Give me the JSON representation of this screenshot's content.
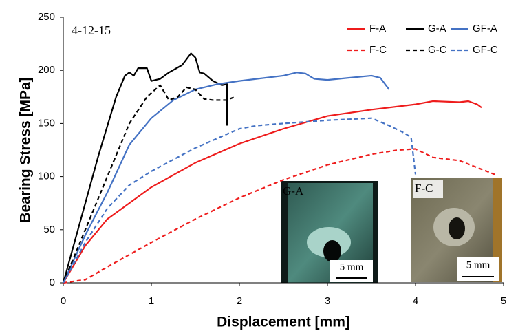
{
  "chart_data": {
    "type": "line",
    "annotation": "4-12-15",
    "xlabel": "Displacement [mm]",
    "ylabel": "Bearing Stress [MPa]",
    "xlim": [
      0,
      5
    ],
    "xticks": [
      0,
      1,
      2,
      3,
      4,
      5
    ],
    "ylim": [
      0,
      250
    ],
    "yticks": [
      0,
      50,
      100,
      150,
      200,
      250
    ],
    "insets": [
      {
        "label": "G-A",
        "scale": "5 mm"
      },
      {
        "label": "F-C",
        "scale": "5 mm"
      }
    ],
    "series": [
      {
        "name": "F-A",
        "color": "#ee1c1c",
        "dashed": false,
        "x": [
          0,
          0.25,
          0.5,
          1,
          1.5,
          2,
          2.5,
          3,
          3.5,
          4,
          4.2,
          4.5,
          4.6,
          4.7,
          4.75
        ],
        "values": [
          0,
          35,
          60,
          90,
          113,
          131,
          145,
          157,
          163,
          168,
          171,
          170,
          171,
          168,
          165
        ]
      },
      {
        "name": "G-A",
        "color": "#000000",
        "dashed": false,
        "x": [
          0,
          0.2,
          0.4,
          0.6,
          0.7,
          0.75,
          0.8,
          0.85,
          0.95,
          1.0,
          1.1,
          1.2,
          1.35,
          1.45,
          1.5,
          1.55,
          1.6,
          1.7,
          1.8,
          1.86,
          1.86
        ],
        "values": [
          0,
          60,
          120,
          175,
          195,
          198,
          195,
          202,
          202,
          190,
          192,
          198,
          205,
          216,
          212,
          198,
          197,
          190,
          186,
          187,
          148
        ]
      },
      {
        "name": "GF-A",
        "color": "#4472c4",
        "dashed": false,
        "x": [
          0,
          0.25,
          0.5,
          0.75,
          1,
          1.25,
          1.5,
          1.75,
          2,
          2.5,
          2.65,
          2.75,
          2.85,
          3,
          3.5,
          3.6,
          3.7
        ],
        "values": [
          0,
          45,
          85,
          130,
          155,
          172,
          182,
          187,
          190,
          195,
          198,
          197,
          192,
          191,
          195,
          193,
          182
        ]
      },
      {
        "name": "F-C",
        "color": "#ee1c1c",
        "dashed": true,
        "x": [
          0,
          0.25,
          0.5,
          1,
          1.5,
          2,
          2.5,
          3,
          3.5,
          3.8,
          4,
          4.2,
          4.5,
          4.9
        ],
        "values": [
          0,
          3,
          15,
          38,
          60,
          80,
          97,
          111,
          121,
          125,
          126,
          118,
          115,
          102
        ]
      },
      {
        "name": "G-C",
        "color": "#000000",
        "dashed": true,
        "x": [
          0,
          0.25,
          0.5,
          0.75,
          0.95,
          1.1,
          1.2,
          1.3,
          1.4,
          1.5,
          1.6,
          1.7,
          1.85,
          1.95
        ],
        "values": [
          0,
          50,
          100,
          150,
          175,
          186,
          172,
          175,
          184,
          182,
          173,
          172,
          172,
          175
        ]
      },
      {
        "name": "GF-C",
        "color": "#4472c4",
        "dashed": true,
        "x": [
          0,
          0.25,
          0.5,
          0.75,
          1,
          1.5,
          2,
          2.2,
          2.5,
          3,
          3.5,
          3.7,
          3.85,
          3.95,
          4
        ],
        "values": [
          0,
          38,
          70,
          92,
          105,
          127,
          145,
          148,
          150,
          153,
          155,
          148,
          142,
          137,
          102
        ]
      }
    ]
  }
}
